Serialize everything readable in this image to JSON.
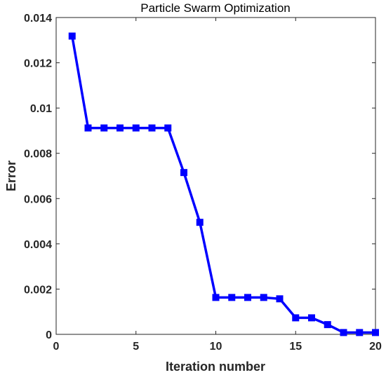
{
  "chart_data": {
    "type": "line",
    "title": "Particle Swarm Optimization",
    "xlabel": "Iteration number",
    "ylabel": "Error",
    "xlim": [
      0,
      20
    ],
    "ylim": [
      0,
      0.014
    ],
    "xticks": [
      0,
      5,
      10,
      15,
      20
    ],
    "xtick_labels": [
      "0",
      "5",
      "10",
      "15",
      "20"
    ],
    "yticks": [
      0,
      0.002,
      0.004,
      0.006,
      0.008,
      0.01,
      0.012,
      0.014
    ],
    "ytick_labels": [
      "0",
      "0.002",
      "0.004",
      "0.006",
      "0.008",
      "0.01",
      "0.012",
      "0.014"
    ],
    "grid": false,
    "legend": false,
    "marker": "square",
    "series": [
      {
        "color": "#0000ff",
        "x": [
          1,
          2,
          3,
          4,
          5,
          6,
          7,
          8,
          9,
          10,
          11,
          12,
          13,
          14,
          15,
          16,
          17,
          18,
          19,
          20
        ],
        "y": [
          0.01318,
          0.00912,
          0.00912,
          0.00912,
          0.00912,
          0.00912,
          0.00912,
          0.00715,
          0.00495,
          0.00163,
          0.00163,
          0.00163,
          0.00163,
          0.00157,
          0.00073,
          0.00073,
          0.00043,
          8e-05,
          8e-05,
          8e-05
        ]
      }
    ]
  }
}
